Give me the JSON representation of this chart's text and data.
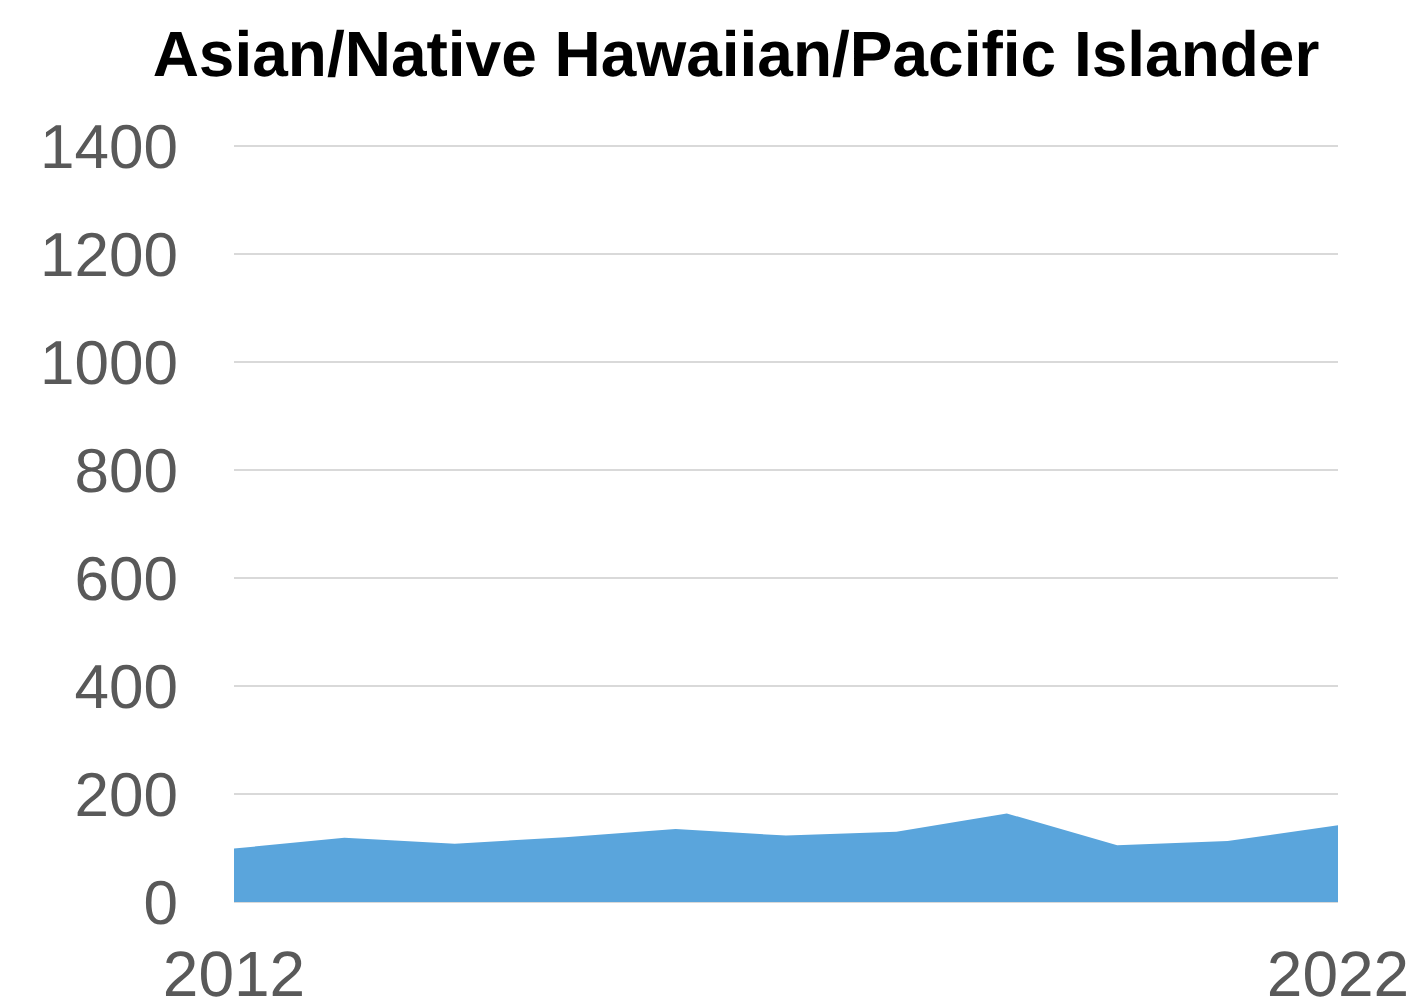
{
  "chart_data": {
    "type": "area",
    "title": "Asian/Native Hawaiian/Pacific Islander",
    "x": [
      2012,
      2013,
      2014,
      2015,
      2016,
      2017,
      2018,
      2019,
      2020,
      2021,
      2022
    ],
    "series": [
      {
        "color": "#5aa5dc",
        "values": [
          99,
          119,
          108,
          120,
          135,
          123,
          130,
          164,
          105,
          113,
          142
        ]
      }
    ],
    "xlim": [
      2012,
      2022
    ],
    "xticks": [
      2012,
      2022
    ],
    "ylim": [
      0,
      1400
    ],
    "yticks": [
      0,
      200,
      400,
      600,
      800,
      1000,
      1200,
      1400
    ],
    "grid": "y"
  }
}
